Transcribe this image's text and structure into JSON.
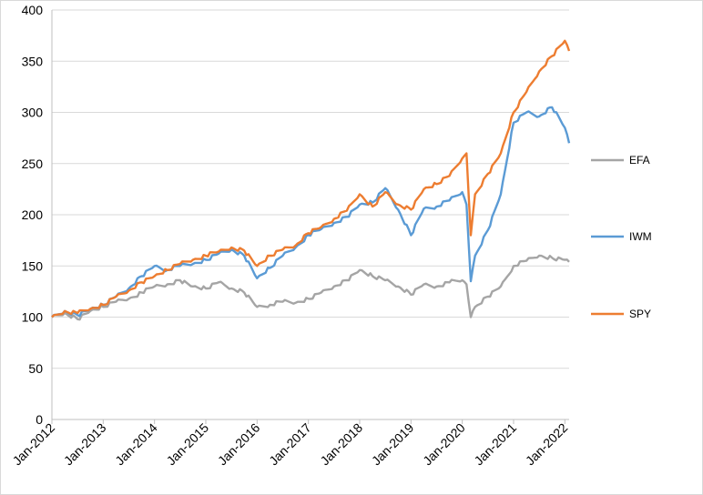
{
  "chart_data": {
    "type": "line",
    "title": "",
    "xlabel": "",
    "ylabel": "",
    "ylim": [
      0,
      400
    ],
    "yticks": [
      0,
      50,
      100,
      150,
      200,
      250,
      300,
      350,
      400
    ],
    "xlim": [
      "2012-01",
      "2022-02"
    ],
    "xticks": [
      "Jan-2012",
      "Jan-2013",
      "Jan-2014",
      "Jan-2015",
      "Jan-2016",
      "Jan-2017",
      "Jan-2018",
      "Jan-2019",
      "Jan-2020",
      "Jan-2021",
      "Jan-2022"
    ],
    "grid": "horizontal",
    "legend_position": "right",
    "x": [
      "2012-01",
      "2012-04",
      "2012-07",
      "2012-10",
      "2013-01",
      "2013-04",
      "2013-07",
      "2013-10",
      "2014-01",
      "2014-04",
      "2014-07",
      "2014-10",
      "2015-01",
      "2015-04",
      "2015-07",
      "2015-10",
      "2016-01",
      "2016-04",
      "2016-07",
      "2016-10",
      "2017-01",
      "2017-04",
      "2017-07",
      "2017-10",
      "2018-01",
      "2018-04",
      "2018-07",
      "2018-10",
      "2019-01",
      "2019-04",
      "2019-07",
      "2019-10",
      "2020-01",
      "2020-02",
      "2020-03",
      "2020-04",
      "2020-07",
      "2020-10",
      "2021-01",
      "2021-04",
      "2021-07",
      "2021-10",
      "2022-01",
      "2022-02"
    ],
    "series": [
      {
        "name": "EFA",
        "color": "#a5a5a5",
        "values": [
          100,
          104,
          98,
          106,
          110,
          115,
          118,
          124,
          130,
          132,
          136,
          130,
          128,
          134,
          128,
          124,
          110,
          112,
          115,
          114,
          118,
          124,
          130,
          136,
          146,
          140,
          136,
          130,
          122,
          132,
          130,
          134,
          136,
          132,
          100,
          110,
          120,
          130,
          150,
          155,
          160,
          158,
          156,
          154
        ]
      },
      {
        "name": "IWM",
        "color": "#5b9bd5",
        "values": [
          100,
          106,
          102,
          108,
          112,
          120,
          128,
          140,
          150,
          146,
          150,
          152,
          156,
          162,
          166,
          160,
          138,
          148,
          160,
          168,
          180,
          186,
          192,
          198,
          210,
          212,
          226,
          205,
          180,
          206,
          208,
          214,
          222,
          210,
          135,
          160,
          185,
          220,
          290,
          300,
          296,
          305,
          285,
          270
        ]
      },
      {
        "name": "SPY",
        "color": "#ed7d31",
        "values": [
          100,
          106,
          104,
          108,
          112,
          120,
          126,
          134,
          140,
          146,
          152,
          156,
          160,
          164,
          168,
          165,
          150,
          160,
          166,
          170,
          182,
          188,
          196,
          204,
          220,
          208,
          222,
          210,
          205,
          225,
          230,
          238,
          255,
          260,
          180,
          220,
          240,
          260,
          300,
          320,
          340,
          355,
          370,
          360
        ]
      }
    ]
  }
}
